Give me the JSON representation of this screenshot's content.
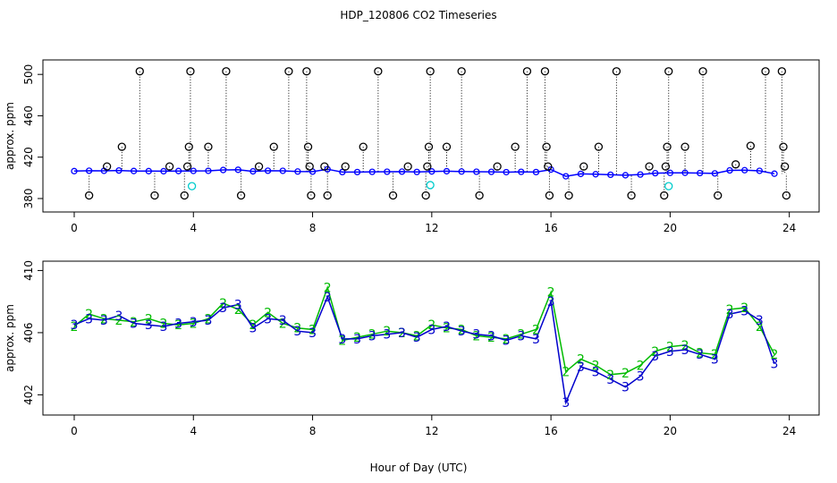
{
  "chart_data": [
    {
      "type": "scatter",
      "title": "HDP_120806  CO2 Timeseries",
      "ylabel": "approx. ppm",
      "xlim": [
        -1.05,
        25
      ],
      "xticks": [
        0,
        4,
        8,
        12,
        16,
        20,
        24
      ],
      "ylim": [
        367,
        514
      ],
      "yticks": [
        380,
        420,
        460,
        500
      ],
      "series": [
        {
          "color": "#0000ff",
          "line": true,
          "x": [
            0,
            0.5,
            1,
            1.5,
            2,
            2.5,
            3,
            3.5,
            4,
            4.5,
            5,
            5.5,
            6,
            6.5,
            7,
            7.5,
            8,
            8.5,
            9,
            9.5,
            10,
            10.5,
            11,
            11.5,
            12,
            12.5,
            13,
            13.5,
            14,
            14.5,
            15,
            15.5,
            16,
            16.5,
            17,
            17.5,
            18,
            18.5,
            19,
            19.5,
            20,
            20.5,
            21,
            21.5,
            22,
            22.5,
            23,
            23.5
          ],
          "values": [
            406.5,
            406.9,
            406.8,
            407.1,
            406.6,
            406.5,
            406.4,
            406.6,
            406.7,
            406.8,
            407.6,
            407.8,
            406.3,
            406.9,
            406.8,
            406.1,
            406.0,
            408.3,
            405.6,
            405.6,
            405.8,
            405.9,
            406.0,
            405.7,
            406.2,
            406.4,
            406.1,
            405.9,
            405.8,
            405.5,
            405.8,
            405.6,
            408.0,
            401.5,
            403.8,
            403.5,
            403.0,
            402.5,
            403.2,
            404.5,
            404.8,
            404.9,
            404.6,
            404.3,
            407.2,
            407.4,
            406.8,
            404.0
          ]
        },
        {
          "color": "#000000",
          "line": false,
          "drop": true,
          "x": [
            0.5,
            1.1,
            1.6,
            2.2,
            2.7,
            3.2,
            3.7,
            3.8,
            3.85,
            3.9,
            4.5,
            5.1,
            5.6,
            6.2,
            6.7,
            7.2,
            7.8,
            7.85,
            7.9,
            7.95,
            8.4,
            8.5,
            9.1,
            9.7,
            10.2,
            10.7,
            11.2,
            11.8,
            11.85,
            11.9,
            11.95,
            12.5,
            13.0,
            13.6,
            14.2,
            14.8,
            15.2,
            15.8,
            15.85,
            15.9,
            15.95,
            16.6,
            17.1,
            17.6,
            18.2,
            18.7,
            19.3,
            19.8,
            19.85,
            19.9,
            19.95,
            20.5,
            21.1,
            21.6,
            22.2,
            22.7,
            23.2,
            23.75,
            23.8,
            23.85,
            23.9
          ],
          "values": [
            383,
            411,
            430,
            503,
            383,
            411,
            383,
            411,
            430,
            503,
            430,
            503,
            383,
            411,
            430,
            503,
            503,
            430,
            411,
            383,
            411,
            383,
            411,
            430,
            503,
            383,
            411,
            383,
            411,
            430,
            503,
            430,
            503,
            383,
            411,
            430,
            503,
            503,
            430,
            411,
            383,
            383,
            411,
            430,
            503,
            383,
            411,
            383,
            411,
            430,
            503,
            430,
            503,
            383,
            413,
            431,
            503,
            503,
            430,
            411,
            383
          ]
        },
        {
          "color": "#00cccc",
          "line": false,
          "x": [
            3.95,
            11.95,
            19.95
          ],
          "values": [
            392,
            393,
            392
          ]
        }
      ]
    },
    {
      "type": "line",
      "ylabel": "approx. ppm",
      "xlabel": "Hour of Day (UTC)",
      "xlim": [
        -1.05,
        25
      ],
      "xticks": [
        0,
        4,
        8,
        12,
        16,
        20,
        24
      ],
      "ylim": [
        400.7,
        410.6
      ],
      "yticks": [
        402,
        406,
        410
      ],
      "x": [
        0,
        0.5,
        1,
        1.5,
        2,
        2.5,
        3,
        3.5,
        4,
        4.5,
        5,
        5.5,
        6,
        6.5,
        7,
        7.5,
        8,
        8.5,
        9,
        9.5,
        10,
        10.5,
        11,
        11.5,
        12,
        12.5,
        13,
        13.5,
        14,
        14.5,
        15,
        15.5,
        16,
        16.5,
        17,
        17.5,
        18,
        18.5,
        19,
        19.5,
        20,
        20.5,
        21,
        21.5,
        22,
        22.5,
        23,
        23.5
      ],
      "series": [
        {
          "marker": "2",
          "color": "#00bb00",
          "values": [
            406.4,
            407.2,
            406.9,
            406.8,
            406.7,
            406.9,
            406.6,
            406.5,
            406.6,
            406.9,
            407.9,
            407.5,
            406.5,
            407.3,
            406.6,
            406.3,
            406.2,
            408.9,
            405.5,
            405.7,
            405.9,
            406.1,
            406.0,
            405.8,
            406.5,
            406.3,
            406.2,
            405.8,
            405.7,
            405.6,
            405.9,
            406.2,
            408.6,
            403.5,
            404.3,
            403.9,
            403.3,
            403.4,
            403.9,
            404.8,
            405.1,
            405.2,
            404.7,
            404.6,
            407.5,
            407.6,
            406.4,
            404.6
          ]
        },
        {
          "marker": "3",
          "color": "#0000cc",
          "values": [
            406.5,
            406.9,
            406.8,
            407.1,
            406.6,
            406.5,
            406.4,
            406.6,
            406.7,
            406.8,
            407.6,
            407.8,
            406.3,
            406.9,
            406.8,
            406.1,
            406.0,
            408.3,
            405.6,
            405.6,
            405.8,
            405.9,
            406.0,
            405.7,
            406.2,
            406.4,
            406.1,
            405.9,
            405.8,
            405.5,
            405.8,
            405.6,
            408.0,
            401.5,
            403.8,
            403.5,
            403.0,
            402.5,
            403.2,
            404.5,
            404.8,
            404.9,
            404.6,
            404.3,
            407.2,
            407.4,
            406.8,
            404.0
          ]
        }
      ]
    }
  ]
}
